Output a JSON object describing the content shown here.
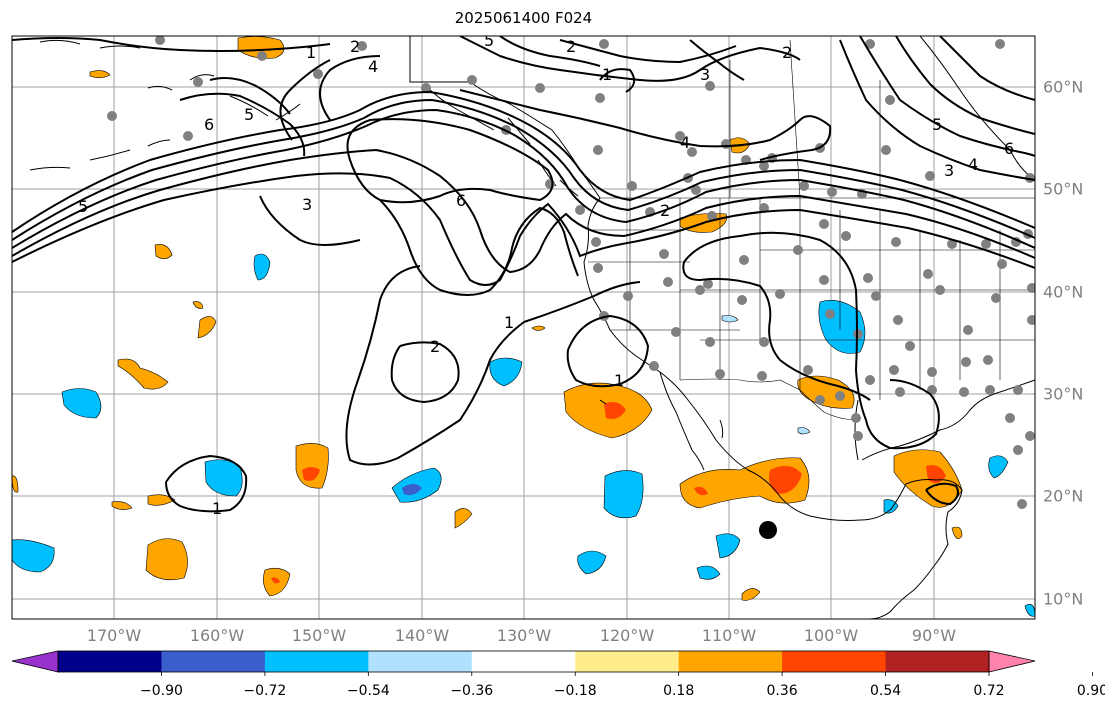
{
  "title": "2025061400 F024",
  "lon_labels": [
    "170°W",
    "160°W",
    "150°W",
    "140°W",
    "130°W",
    "120°W",
    "110°W",
    "100°W",
    "90°W"
  ],
  "lat_labels": [
    "60°N",
    "50°N",
    "40°N",
    "30°N",
    "20°N",
    "10°N"
  ],
  "colorbar": {
    "tick_labels": [
      "−0.90",
      "−0.72",
      "−0.54",
      "−0.36",
      "−0.18",
      "0.18",
      "0.36",
      "0.54",
      "0.72",
      "0.90"
    ],
    "colors": [
      "#9932CC",
      "#00008B",
      "#3A5FCD",
      "#00BFFF",
      "#B0E2FF",
      "#FFFFFF",
      "#FFEC8B",
      "#FFA500",
      "#FF4500",
      "#B22222",
      "#FF82AB"
    ]
  },
  "contour_labels": [
    "1",
    "2",
    "3",
    "4",
    "5",
    "6"
  ],
  "colors": {
    "contour": "#000000",
    "stations": "#808080",
    "grid": "#a0a0a0",
    "storm_marker": "#000000"
  }
}
